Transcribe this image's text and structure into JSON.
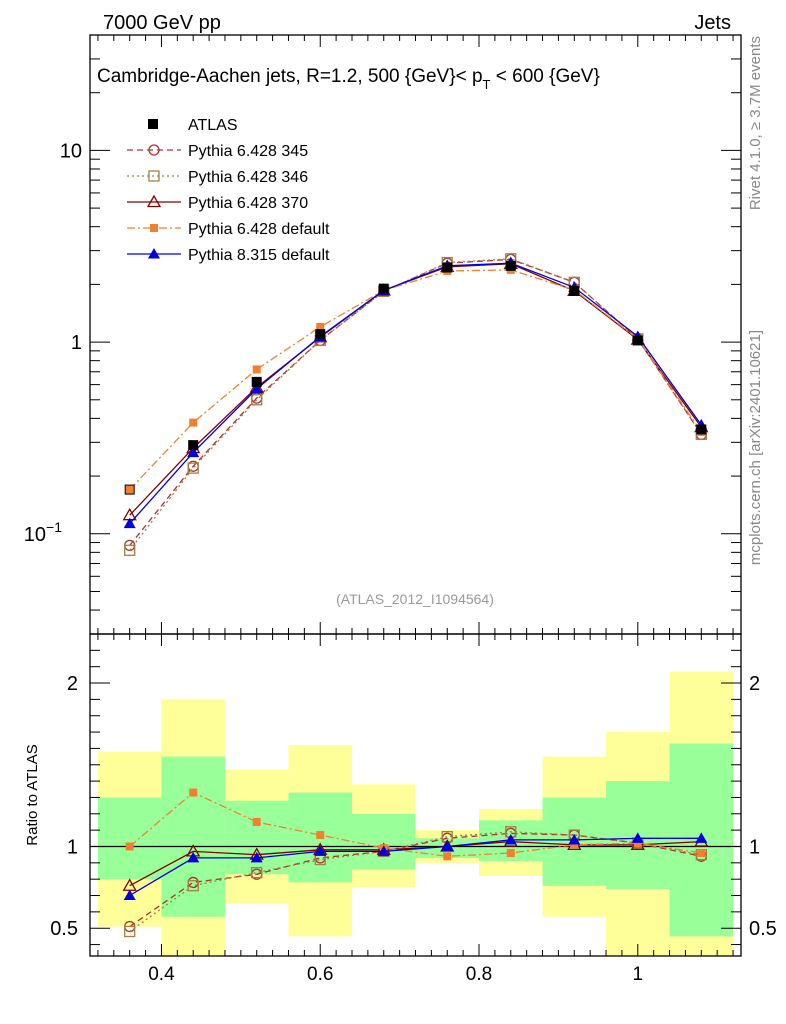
{
  "header": {
    "left": "7000 GeV pp",
    "right": "Jets"
  },
  "side_labels": {
    "rivet": "Rivet 4.1.0, ≥ 3.7M events",
    "mcplots": "mcplots.cern.ch [arXiv:2401.10621]"
  },
  "chart_data": {
    "type": "line",
    "title": "Cambridge-Aachen jets, R=1.2,  500 {GeV}< p_T < 600 {GeV}",
    "title_parts": {
      "main": "Cambridge-Aachen jets, R=1.2,  500 {GeV}< p",
      "sub": "T",
      "tail": " < 600 {GeV}"
    },
    "analysis_id": "(ATLAS_2012_I1094564)",
    "x": [
      0.36,
      0.44,
      0.52,
      0.6,
      0.68,
      0.76,
      0.84,
      0.92,
      1.0,
      1.08
    ],
    "x_edges": [
      0.32,
      0.4,
      0.48,
      0.56,
      0.64,
      0.72,
      0.8,
      0.88,
      0.96,
      1.04,
      1.12
    ],
    "xlim": [
      0.31,
      1.13
    ],
    "xticks": [
      "0.4",
      "0.6",
      "0.8",
      "1"
    ],
    "xtick_values": [
      0.4,
      0.6,
      0.8,
      1.0
    ],
    "main_yscale": "log",
    "main_ylim": [
      0.03,
      40
    ],
    "main_yticks": [
      {
        "value": 0.1,
        "base": "10",
        "exp": "−1"
      },
      {
        "value": 1,
        "base": "1",
        "exp": ""
      },
      {
        "value": 10,
        "base": "10",
        "exp": ""
      }
    ],
    "ratio_ylabel": "Ratio to ATLAS",
    "ratio_ylim": [
      0.33,
      2.3
    ],
    "ratio_yticks": [
      {
        "value": 0.5,
        "label": "0.5"
      },
      {
        "value": 1,
        "label": "1"
      },
      {
        "value": 2,
        "label": "2"
      }
    ],
    "legend_position": "top-left",
    "data": {
      "name": "ATLAS",
      "values": [
        0.17,
        0.29,
        0.62,
        1.1,
        1.9,
        2.45,
        2.5,
        1.85,
        1.02,
        0.35
      ]
    },
    "uncertainty_bands": {
      "yellow_lo": [
        0.51,
        0.33,
        0.65,
        0.45,
        0.75,
        0.9,
        0.82,
        0.57,
        0.33,
        0.33
      ],
      "yellow_hi": [
        1.58,
        1.9,
        1.47,
        1.62,
        1.38,
        1.1,
        1.23,
        1.55,
        1.7,
        2.07
      ],
      "green_lo": [
        0.8,
        0.57,
        0.83,
        0.78,
        0.86,
        0.93,
        0.91,
        0.76,
        0.74,
        0.45
      ],
      "green_hi": [
        1.3,
        1.55,
        1.28,
        1.33,
        1.2,
        1.05,
        1.16,
        1.3,
        1.4,
        1.63
      ]
    },
    "series": [
      {
        "name": "Pythia 6.428 345",
        "color": "#b03030",
        "line": "dashed",
        "marker": "open-circle",
        "values": [
          0.087,
          0.225,
          0.51,
          1.02,
          1.84,
          2.58,
          2.7,
          2.05,
          1.04,
          0.33
        ],
        "ratio": [
          0.51,
          0.78,
          0.83,
          0.93,
          0.97,
          1.05,
          1.08,
          1.07,
          1.02,
          0.94
        ]
      },
      {
        "name": "Pythia 6.428 346",
        "color": "#a08040",
        "line": "dotted",
        "marker": "open-square",
        "values": [
          0.082,
          0.22,
          0.5,
          1.02,
          1.84,
          2.6,
          2.72,
          2.05,
          1.04,
          0.33
        ],
        "ratio": [
          0.48,
          0.76,
          0.84,
          0.92,
          0.97,
          1.06,
          1.09,
          1.07,
          1.02,
          0.95
        ]
      },
      {
        "name": "Pythia 6.428 370",
        "color": "#800000",
        "line": "solid",
        "marker": "open-triangle",
        "values": [
          0.125,
          0.28,
          0.58,
          1.06,
          1.86,
          2.47,
          2.56,
          1.85,
          1.03,
          0.36
        ],
        "ratio": [
          0.76,
          0.97,
          0.95,
          0.98,
          0.98,
          1.0,
          1.03,
          1.01,
          1.01,
          1.03
        ]
      },
      {
        "name": "Pythia 6.428 default",
        "color": "#f08030",
        "line": "dashdot",
        "marker": "filled-square",
        "values": [
          0.17,
          0.38,
          0.72,
          1.2,
          1.86,
          2.35,
          2.38,
          1.87,
          1.04,
          0.34
        ],
        "ratio": [
          1.0,
          1.33,
          1.15,
          1.07,
          0.99,
          0.94,
          0.96,
          1.01,
          1.02,
          0.96
        ]
      },
      {
        "name": "Pythia 8.315 default",
        "color": "#0000dd",
        "line": "solid",
        "marker": "filled-triangle",
        "values": [
          0.113,
          0.265,
          0.57,
          1.07,
          1.86,
          2.5,
          2.58,
          1.93,
          1.07,
          0.37
        ],
        "ratio": [
          0.7,
          0.93,
          0.93,
          0.97,
          0.97,
          1.0,
          1.04,
          1.04,
          1.05,
          1.05
        ]
      }
    ]
  }
}
